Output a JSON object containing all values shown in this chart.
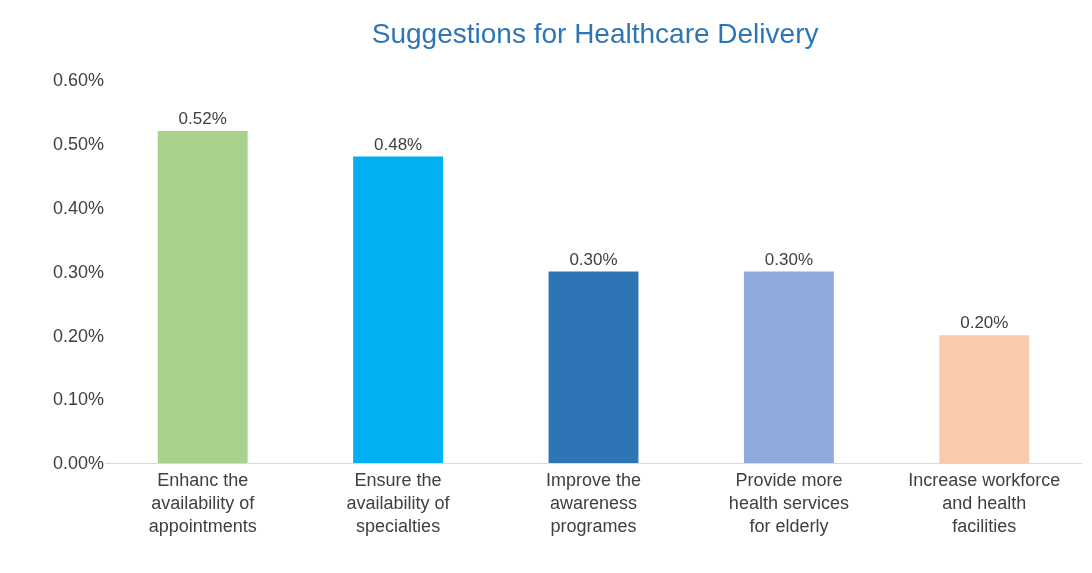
{
  "chart_data": {
    "type": "bar",
    "title": "Suggestions for Healthcare Delivery",
    "categories": [
      "Enhanc the availability of appointments",
      "Ensure the availability of specialties",
      "Improve the awareness programes",
      "Provide more health services for elderly",
      "Increase workforce and health facilities"
    ],
    "values": [
      0.52,
      0.48,
      0.3,
      0.3,
      0.2
    ],
    "colors": [
      "#a9d18e",
      "#00b0f0",
      "#2e75b6",
      "#8faadc",
      "#f8cbad"
    ],
    "value_labels": [
      "0.52%",
      "0.48%",
      "0.30%",
      "0.30%",
      "0.20%"
    ],
    "ylim": [
      0,
      0.6
    ],
    "yticks": [
      {
        "value": 0,
        "label": "0.00%"
      },
      {
        "value": 0.1,
        "label": "0.10%"
      },
      {
        "value": 0.2,
        "label": "0.20%"
      },
      {
        "value": 0.3,
        "label": "0.30%"
      },
      {
        "value": 0.4,
        "label": "0.40%"
      },
      {
        "value": 0.5,
        "label": "0.50%"
      },
      {
        "value": 0.6,
        "label": "0.60%"
      }
    ],
    "grid": false
  }
}
